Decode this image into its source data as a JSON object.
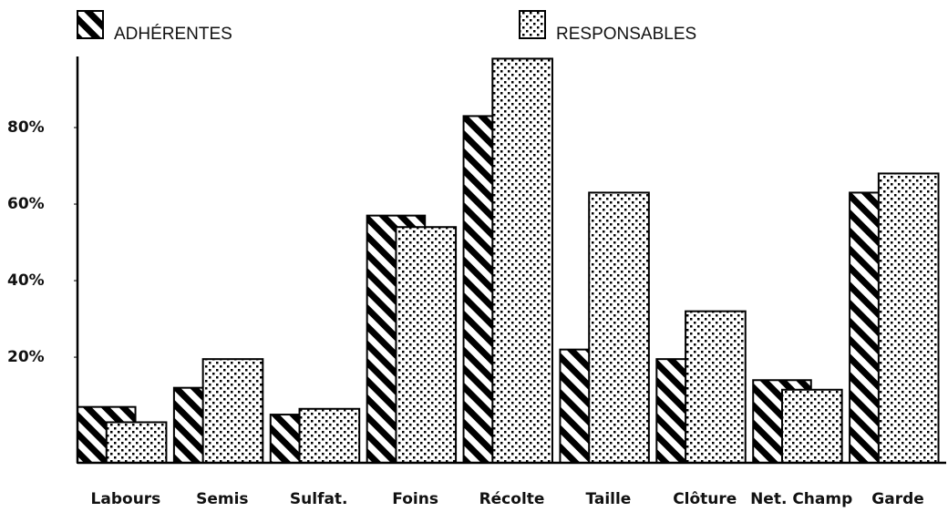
{
  "chart_data": {
    "type": "bar",
    "categories": [
      "Labours",
      "Semis",
      "Sulfat.",
      "Foins",
      "Récolte",
      "Taille",
      "Clôture",
      "Net. Champ",
      "Garde"
    ],
    "series": [
      {
        "name": "ADHÉRENTES",
        "color": "#000000",
        "pattern": "hatch",
        "values": [
          7,
          12,
          5,
          57,
          83,
          22,
          19.5,
          14,
          63
        ]
      },
      {
        "name": "RESPONSABLES",
        "color": "#000000",
        "pattern": "dots",
        "values": [
          3,
          19.5,
          6.5,
          54,
          98,
          63,
          32,
          11.5,
          68
        ]
      }
    ],
    "ylim": [
      -7.6,
      100
    ],
    "yticks": [
      {
        "value": 20,
        "label": "20%"
      },
      {
        "value": 40,
        "label": "40%"
      },
      {
        "value": 60,
        "label": "60%"
      },
      {
        "value": 80,
        "label": "80%"
      }
    ],
    "grid": false
  }
}
